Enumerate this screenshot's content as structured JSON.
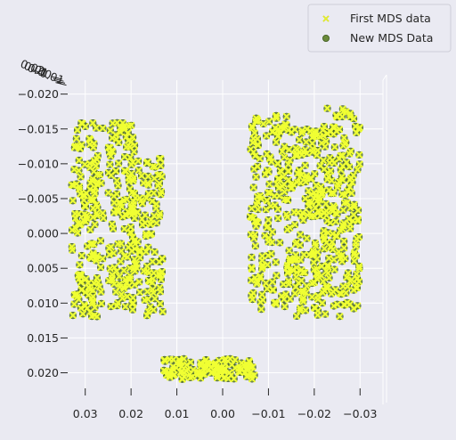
{
  "chart_data": {
    "type": "scatter",
    "projection": "3d",
    "title": "",
    "xlabel": "",
    "ylabel": "",
    "zlabel": "",
    "x_ticks": [
      "0.03",
      "0.02",
      "0.01",
      "0.00",
      "−0.01",
      "−0.02",
      "−0.03"
    ],
    "y_ticks": [
      "−0.020",
      "−0.015",
      "−0.010",
      "−0.005",
      "0.000",
      "0.005",
      "0.010",
      "0.015",
      "0.020"
    ],
    "z_ticks_stacked": [
      "0.02",
      "0.01",
      "0.00",
      "−0.01"
    ],
    "xlim": [
      0.035,
      -0.035
    ],
    "ylim": [
      -0.022,
      0.023
    ],
    "legend": {
      "position": "top-right",
      "entries": [
        {
          "label": "First MDS data",
          "marker": "x",
          "color": "#f0ff33"
        },
        {
          "label": "New MDS Data",
          "marker": "o",
          "color": "#6a8a3a"
        }
      ]
    },
    "background": "#eaeaf2",
    "grid": true,
    "series": [
      {
        "name": "First MDS data",
        "marker": "x",
        "color": "#f0ff33",
        "clusters": [
          {
            "x_range": [
              0.033,
              0.026
            ],
            "y_range": [
              -0.016,
              0.012
            ]
          },
          {
            "x_range": [
              0.025,
              0.019
            ],
            "y_range": [
              -0.016,
              0.011
            ]
          },
          {
            "x_range": [
              0.02,
              0.013
            ],
            "y_range": [
              -0.011,
              0.012
            ]
          },
          {
            "x_range": [
              0.013,
              -0.007
            ],
            "y_range": [
              0.018,
              0.021
            ]
          },
          {
            "x_range": [
              -0.006,
              -0.015
            ],
            "y_range": [
              -0.017,
              0.011
            ]
          },
          {
            "x_range": [
              -0.015,
              -0.022
            ],
            "y_range": [
              -0.015,
              0.012
            ]
          },
          {
            "x_range": [
              -0.022,
              -0.03
            ],
            "y_range": [
              -0.018,
              0.012
            ]
          }
        ]
      },
      {
        "name": "New MDS Data",
        "marker": "o",
        "color": "#6a8a3a",
        "clusters": [
          {
            "x_range": [
              0.033,
              0.026
            ],
            "y_range": [
              -0.016,
              0.012
            ]
          },
          {
            "x_range": [
              0.025,
              0.019
            ],
            "y_range": [
              -0.016,
              0.011
            ]
          },
          {
            "x_range": [
              0.02,
              0.013
            ],
            "y_range": [
              -0.011,
              0.012
            ]
          },
          {
            "x_range": [
              0.013,
              -0.007
            ],
            "y_range": [
              0.018,
              0.021
            ]
          },
          {
            "x_range": [
              -0.006,
              -0.015
            ],
            "y_range": [
              -0.017,
              0.011
            ]
          },
          {
            "x_range": [
              -0.015,
              -0.022
            ],
            "y_range": [
              -0.015,
              0.012
            ]
          },
          {
            "x_range": [
              -0.022,
              -0.03
            ],
            "y_range": [
              -0.018,
              0.012
            ]
          }
        ]
      }
    ]
  }
}
